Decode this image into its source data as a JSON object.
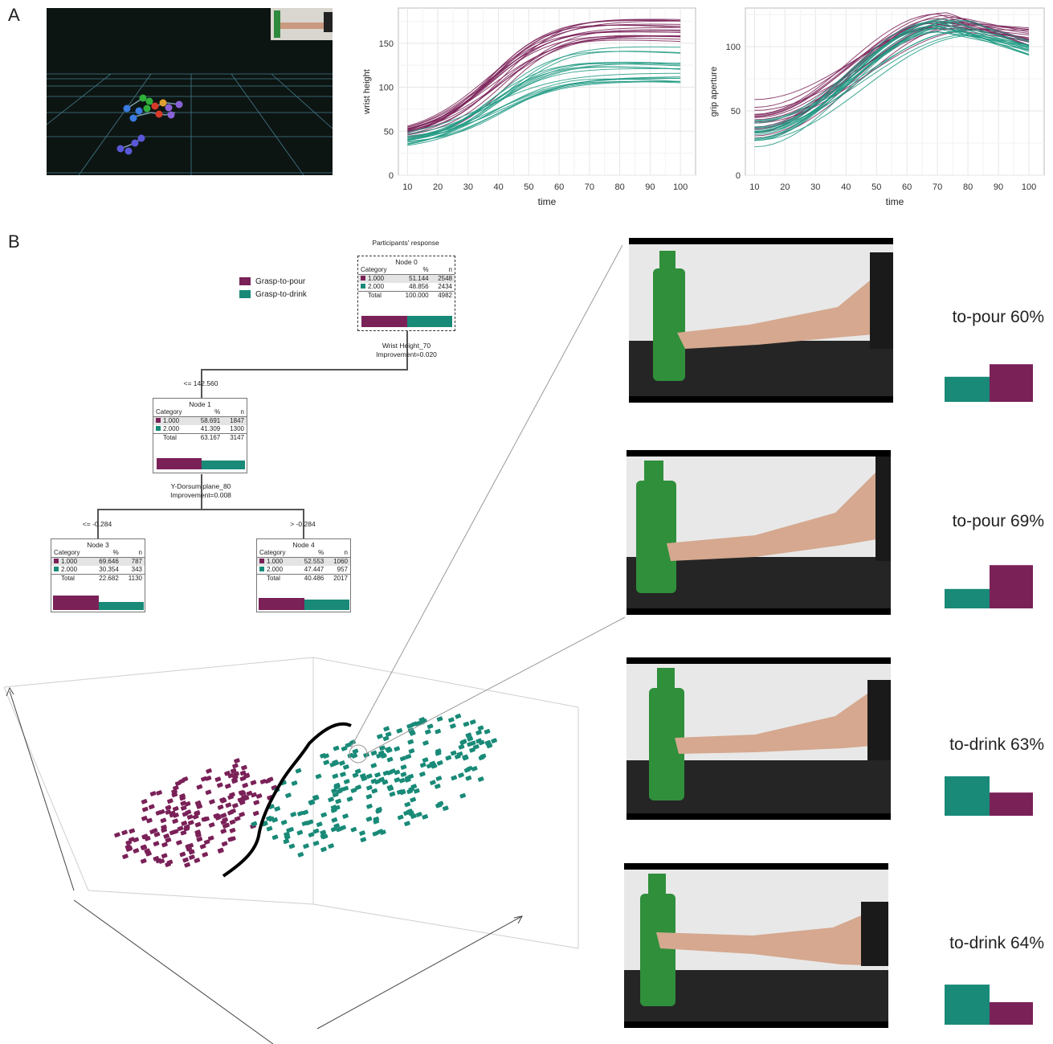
{
  "panels": {
    "a": "A",
    "b": "B"
  },
  "colors": {
    "pour": "#7a2158",
    "drink": "#198a78",
    "drink_light": "#2aa38b"
  },
  "chart_data": [
    {
      "type": "line",
      "xlabel": "time",
      "ylabel": "wrist height",
      "xlim": [
        7,
        105
      ],
      "ylim": [
        0,
        190
      ],
      "xticks": [
        10,
        20,
        30,
        40,
        50,
        60,
        70,
        80,
        90,
        100
      ],
      "yticks": [
        0,
        50,
        100,
        150
      ],
      "grid": true,
      "series_groups": [
        {
          "class": "pour",
          "start_range": [
            40,
            45
          ],
          "plateau_range": [
            155,
            182
          ]
        },
        {
          "class": "drink",
          "start_range": [
            27,
            44
          ],
          "plateau_range": [
            107,
            150
          ]
        }
      ]
    },
    {
      "type": "line",
      "xlabel": "time",
      "ylabel": "grip aperture",
      "xlim": [
        7,
        105
      ],
      "ylim": [
        0,
        130
      ],
      "xticks": [
        10,
        20,
        30,
        40,
        50,
        60,
        70,
        80,
        90,
        100
      ],
      "yticks": [
        0,
        50,
        100
      ],
      "grid": true,
      "series_groups": [
        {
          "class": "pour",
          "start_range": [
            28,
            62
          ],
          "peak_range": [
            112,
            127
          ],
          "end_range": [
            100,
            115
          ]
        },
        {
          "class": "drink",
          "start_range": [
            18,
            44
          ],
          "peak_range": [
            108,
            122
          ],
          "end_range": [
            92,
            108
          ]
        }
      ]
    }
  ],
  "legend": {
    "pour": "Grasp-to-pour",
    "drink": "Grasp-to-drink"
  },
  "tree": {
    "root_label": "Participants' response",
    "node0": {
      "title": "Node 0",
      "rows": [
        [
          "1.000",
          "51.144",
          "2548"
        ],
        [
          "2.000",
          "48.856",
          "2434"
        ]
      ],
      "total": [
        "100.000",
        "4982"
      ],
      "split1": "Wrist Height_70",
      "split2": "Improvement=0.020"
    },
    "edge_left": "<= 142.560",
    "node1": {
      "title": "Node 1",
      "rows": [
        [
          "1.000",
          "58.691",
          "1847"
        ],
        [
          "2.000",
          "41.309",
          "1300"
        ]
      ],
      "total": [
        "63.167",
        "3147"
      ],
      "split1": "Y-Dorsum plane_80",
      "split2": "Improvement=0.008"
    },
    "edge_ll": "<= -0.284",
    "edge_lr": "> -0.284",
    "node3": {
      "title": "Node 3",
      "rows": [
        [
          "1.000",
          "69.646",
          "787"
        ],
        [
          "2.000",
          "30.354",
          "343"
        ]
      ],
      "total": [
        "22.682",
        "1130"
      ]
    },
    "node4": {
      "title": "Node 4",
      "rows": [
        [
          "1.000",
          "52.553",
          "1060"
        ],
        [
          "2.000",
          "47.447",
          "957"
        ]
      ],
      "total": [
        "40.486",
        "2017"
      ]
    },
    "head": {
      "category": "Category",
      "pct": "%",
      "n": "n",
      "total": "Total"
    }
  },
  "predictions": [
    {
      "label": "to-pour 60%",
      "drink": 40,
      "pour": 60
    },
    {
      "label": "to-pour 69%",
      "drink": 31,
      "pour": 69
    },
    {
      "label": "to-drink 63%",
      "drink": 63,
      "pour": 37
    },
    {
      "label": "to-drink 64%",
      "drink": 64,
      "pour": 36
    }
  ]
}
